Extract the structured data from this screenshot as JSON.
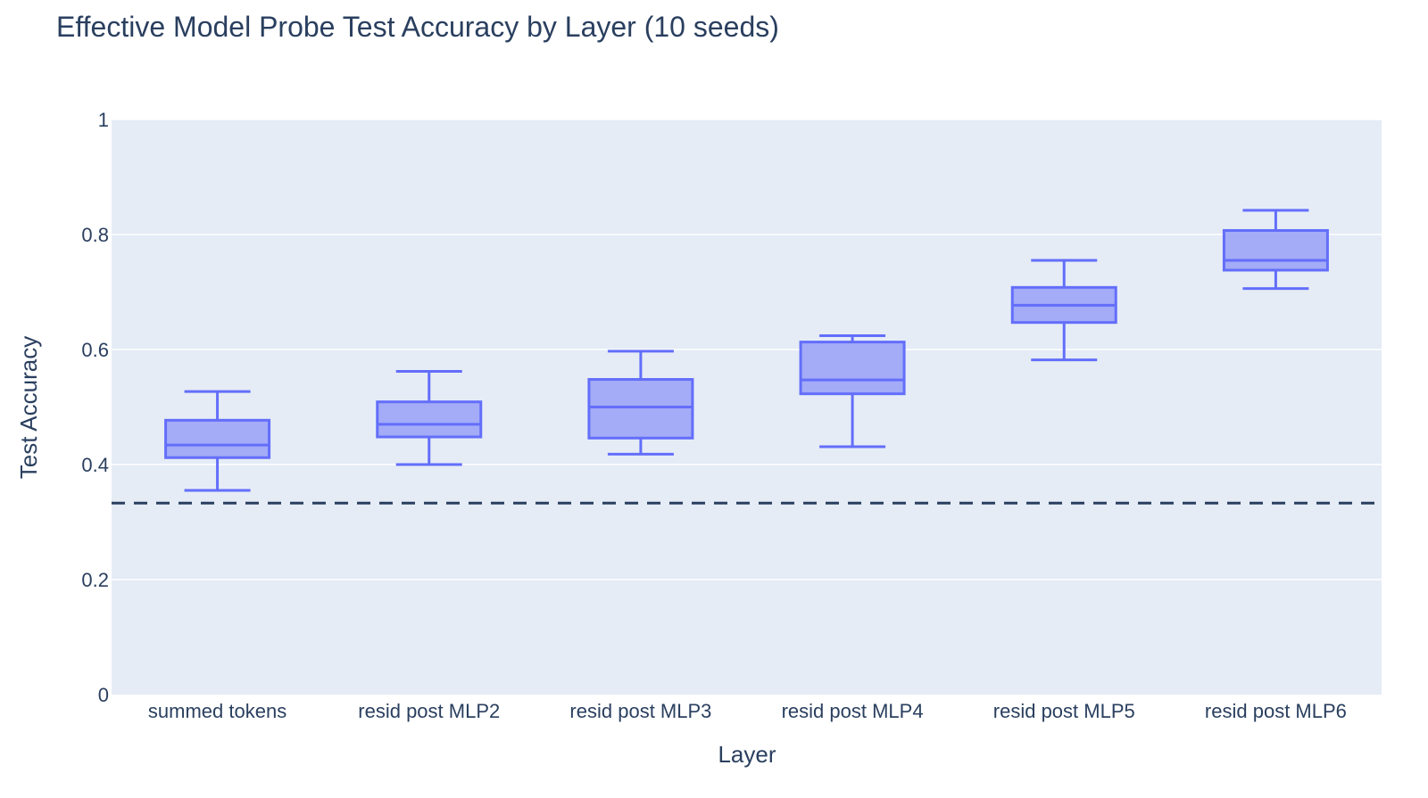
{
  "chart_data": {
    "type": "box",
    "title": "Effective Model Probe Test Accuracy by Layer (10 seeds)",
    "xlabel": "Layer",
    "ylabel": "Test Accuracy",
    "ylim": [
      0,
      1
    ],
    "yticks": [
      "0",
      "0.2",
      "0.4",
      "0.6",
      "0.8",
      "1"
    ],
    "ytick_values": [
      0,
      0.2,
      0.4,
      0.6,
      0.8,
      1
    ],
    "grid": true,
    "categories": [
      "summed tokens",
      "resid post MLP2",
      "resid post MLP3",
      "resid post MLP4",
      "resid post MLP5",
      "resid post MLP6"
    ],
    "boxes": [
      {
        "min": 0.355,
        "q1": 0.412,
        "median": 0.434,
        "q3": 0.477,
        "max": 0.527
      },
      {
        "min": 0.4,
        "q1": 0.448,
        "median": 0.47,
        "q3": 0.509,
        "max": 0.562
      },
      {
        "min": 0.418,
        "q1": 0.446,
        "median": 0.5,
        "q3": 0.548,
        "max": 0.597
      },
      {
        "min": 0.431,
        "q1": 0.523,
        "median": 0.547,
        "q3": 0.613,
        "max": 0.624
      },
      {
        "min": 0.582,
        "q1": 0.647,
        "median": 0.677,
        "q3": 0.708,
        "max": 0.755
      },
      {
        "min": 0.706,
        "q1": 0.738,
        "median": 0.755,
        "q3": 0.807,
        "max": 0.842
      }
    ],
    "reference_line": {
      "y": 0.333,
      "style": "dashed"
    },
    "colors": {
      "box_line": "#636efa",
      "box_fill": "#a4abf7",
      "plot_bg": "#e5ecf6",
      "grid": "#ffffff",
      "reference_line": "#2a3f5f",
      "text": "#2a3f5f"
    }
  }
}
